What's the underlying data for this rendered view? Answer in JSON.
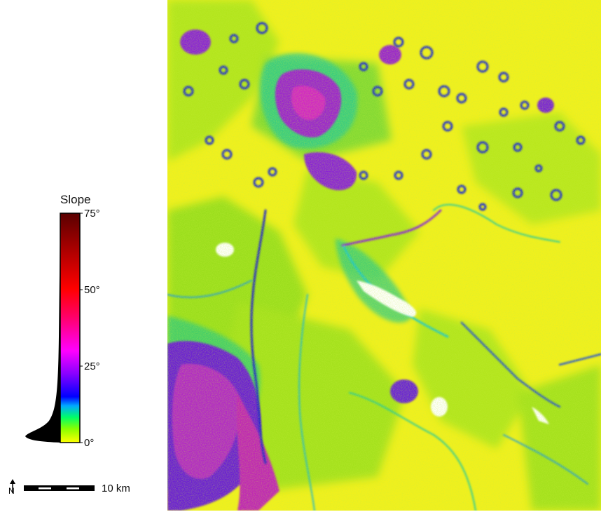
{
  "legend": {
    "title": "Slope",
    "ticks": [
      {
        "label": "75°",
        "value": 75
      },
      {
        "label": "50°",
        "value": 50
      },
      {
        "label": "25°",
        "value": 25
      },
      {
        "label": "0°",
        "value": 0
      }
    ],
    "range": [
      0,
      75
    ],
    "gradient_colors": [
      "#ffff00",
      "#00ff00",
      "#0000ff",
      "#ff00ff",
      "#ff0000",
      "#8b0000",
      "#4a0000"
    ]
  },
  "scale_bar": {
    "label": "10 km",
    "north_symbol": "N"
  },
  "map": {
    "type": "slope-raster",
    "dominant_colors": [
      "#f4f41a",
      "#9fe617",
      "#1fd36a",
      "#0a22d6",
      "#8a1fd8",
      "#b020c0",
      "#ffffff"
    ]
  }
}
